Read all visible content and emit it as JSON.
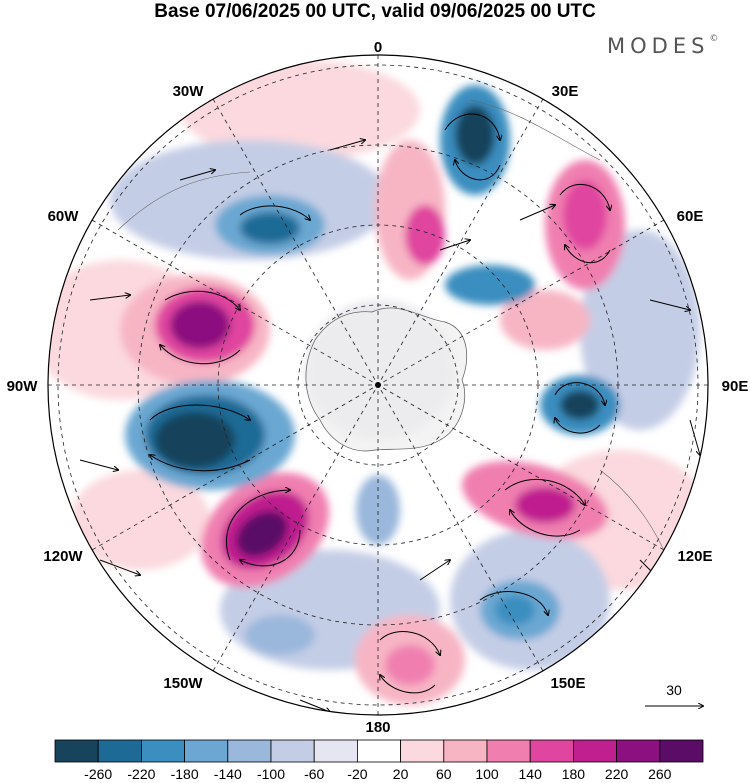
{
  "title": "Base 07/06/2025 00 UTC, valid 09/06/2025 00 UTC",
  "brand": "MODES",
  "brand_mark": "©",
  "longitude_labels": {
    "top": "0",
    "top_right": "30E",
    "right_upper": "60E",
    "right": "90E",
    "right_lower": "120E",
    "bottom_right": "150E",
    "bottom": "180",
    "bottom_left": "150W",
    "left_lower": "120W",
    "left": "90W",
    "left_upper": "60W",
    "top_left": "30W"
  },
  "reference_vector": {
    "label": "30"
  },
  "colorbar": {
    "ticks": [
      "-260",
      "-220",
      "-180",
      "-140",
      "-100",
      "-60",
      "-20",
      "20",
      "60",
      "100",
      "140",
      "180",
      "220",
      "260"
    ],
    "colors": [
      "#17435c",
      "#1e6a96",
      "#3a8ec0",
      "#6ba7d2",
      "#9ab7dc",
      "#c4cde6",
      "#e6e6f2",
      "#ffffff",
      "#fbd9de",
      "#f7b5c4",
      "#f07fb0",
      "#e0459f",
      "#bf1f8f",
      "#8c107f",
      "#5a0c66"
    ]
  }
}
